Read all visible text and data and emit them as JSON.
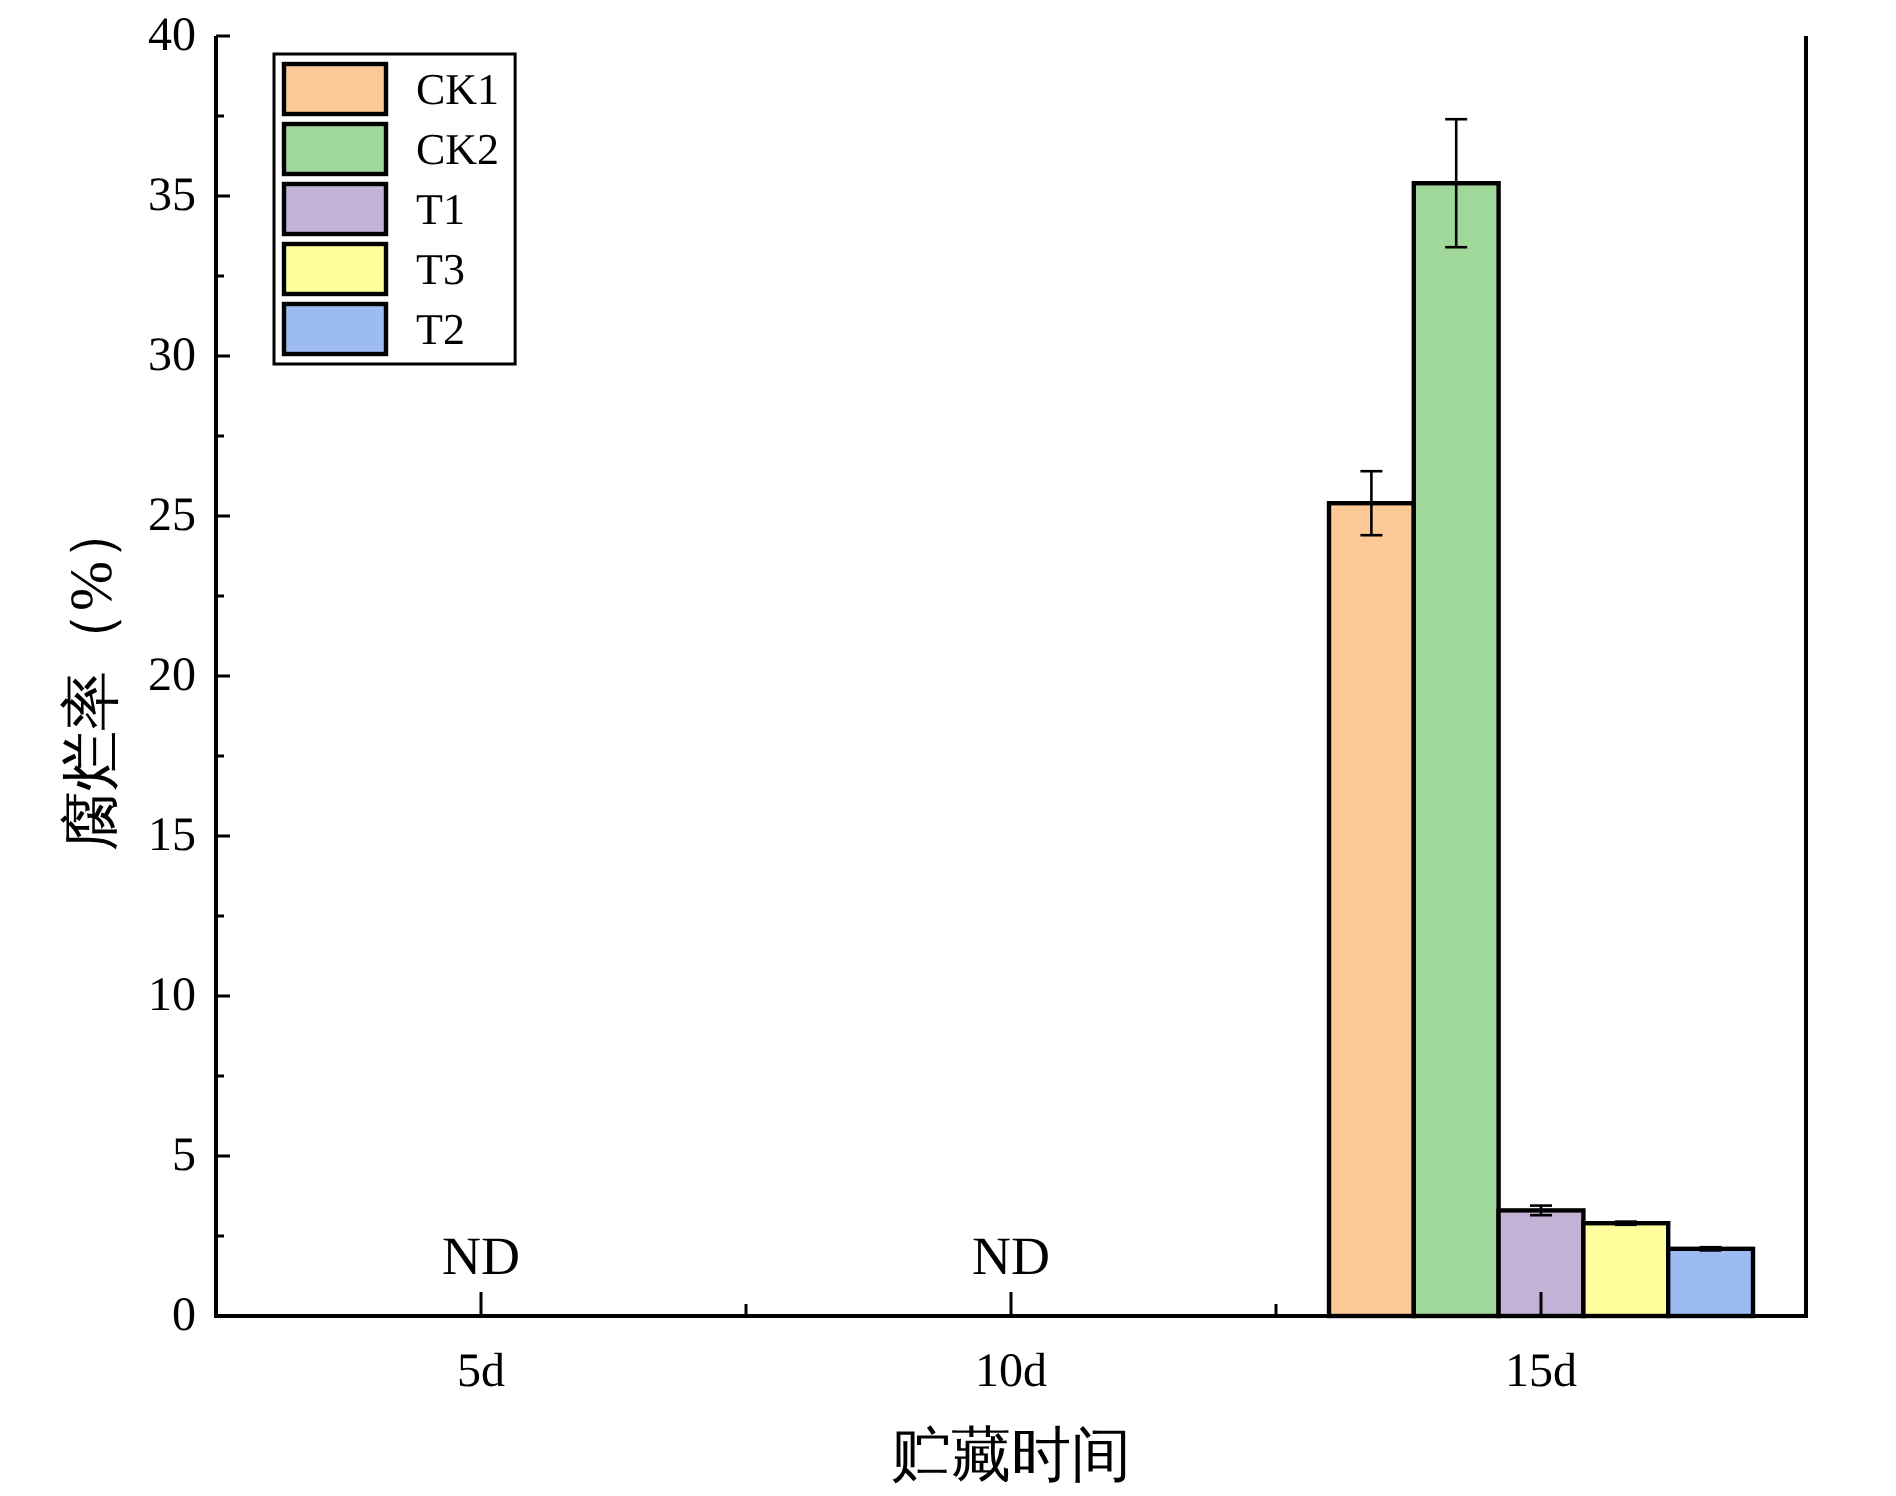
{
  "chart_data": {
    "type": "bar",
    "xlabel": "贮藏时间",
    "ylabel": "腐烂率（%）",
    "categories": [
      "5d",
      "10d",
      "15d"
    ],
    "series": [
      {
        "name": "CK1",
        "color": "#fcc997",
        "values": [
          null,
          null,
          25.4
        ],
        "errors": [
          null,
          null,
          1.0
        ]
      },
      {
        "name": "CK2",
        "color": "#a0d89c",
        "values": [
          null,
          null,
          35.4
        ],
        "errors": [
          null,
          null,
          2.0
        ]
      },
      {
        "name": "T1",
        "color": "#c2b2d6",
        "values": [
          null,
          null,
          3.3
        ],
        "errors": [
          null,
          null,
          0.15
        ]
      },
      {
        "name": "T3",
        "color": "#ffff9e",
        "values": [
          null,
          null,
          2.9
        ],
        "errors": [
          null,
          null,
          0.05
        ]
      },
      {
        "name": "T2",
        "color": "#9cbcf1",
        "values": [
          null,
          null,
          2.1
        ],
        "errors": [
          null,
          null,
          0.05
        ]
      }
    ],
    "ylim": [
      0,
      40
    ],
    "yticks": [
      0,
      5,
      10,
      15,
      20,
      25,
      30,
      35,
      40
    ],
    "legend": "top left",
    "annotations": [
      "ND",
      "ND"
    ]
  }
}
